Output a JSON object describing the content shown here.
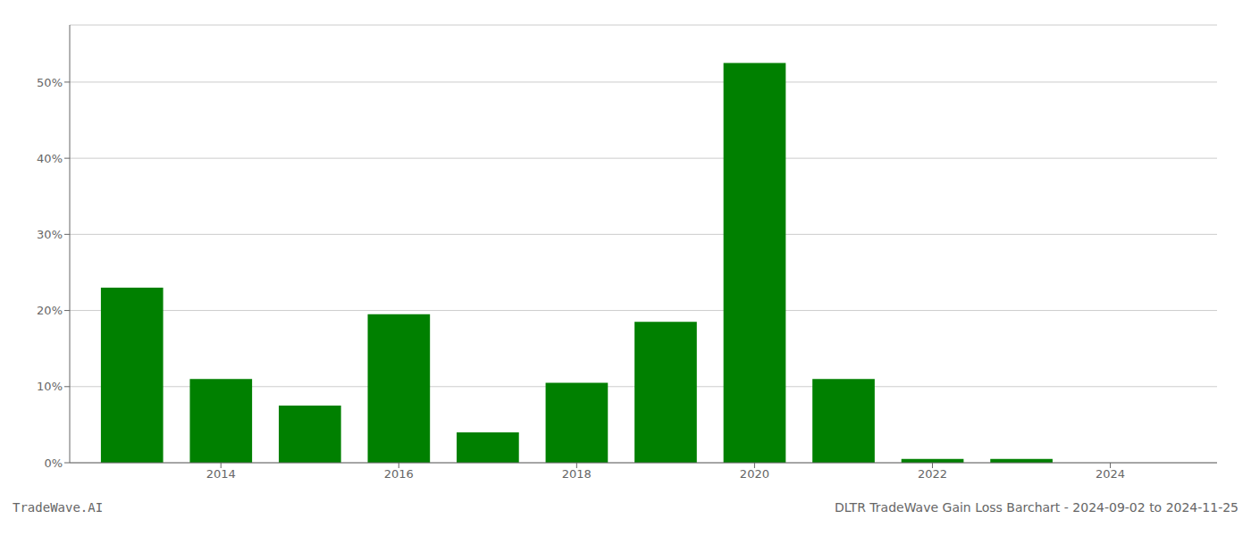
{
  "chart_data": {
    "type": "bar",
    "x": [
      2013,
      2014,
      2015,
      2016,
      2017,
      2018,
      2019,
      2020,
      2021,
      2022,
      2023,
      2024
    ],
    "values": [
      0.23,
      0.11,
      0.075,
      0.195,
      0.04,
      0.105,
      0.185,
      0.525,
      0.11,
      0.005,
      0.005,
      0.0
    ],
    "color": "#008000",
    "xlim": [
      2012.3,
      2025.2
    ],
    "xticks": [
      2014,
      2016,
      2018,
      2020,
      2022,
      2024
    ],
    "ylim": [
      0,
      0.575
    ],
    "yticks": [
      {
        "value": 0,
        "label": "0%"
      },
      {
        "value": 0.1,
        "label": "10%"
      },
      {
        "value": 0.2,
        "label": "20%"
      },
      {
        "value": 0.3,
        "label": "30%"
      },
      {
        "value": 0.4,
        "label": "40%"
      },
      {
        "value": 0.5,
        "label": "50%"
      }
    ],
    "grid": true,
    "annotations": [
      "TradeWave.AI",
      "DLTR TradeWave Gain Loss Barchart - 2024-09-02 to 2024-11-25"
    ]
  }
}
